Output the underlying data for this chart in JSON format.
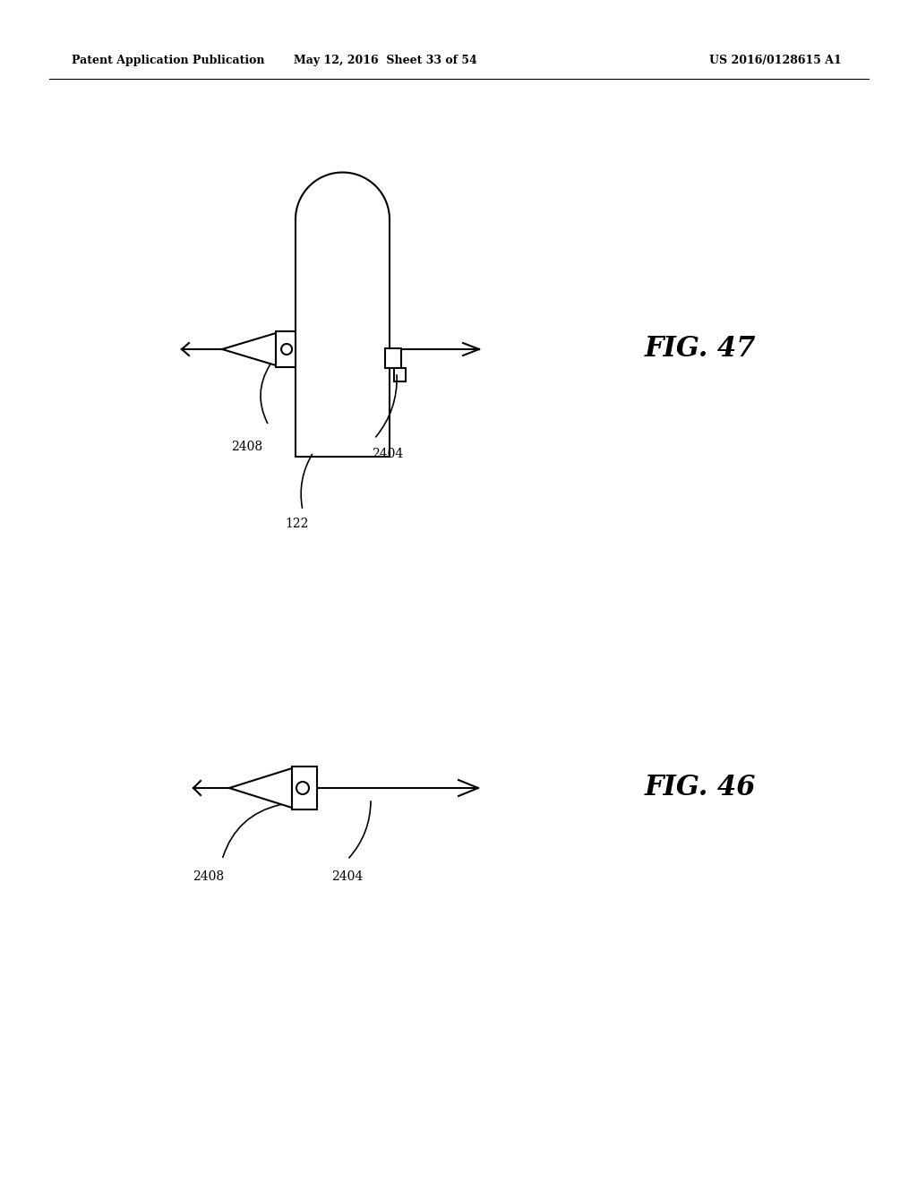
{
  "header_left": "Patent Application Publication",
  "header_mid": "May 12, 2016  Sheet 33 of 54",
  "header_right": "US 2016/0128615 A1",
  "fig47_label": "FIG. 47",
  "fig46_label": "FIG. 46",
  "label_2408_fig47": "2408",
  "label_2404_fig47": "2404",
  "label_122": "122",
  "label_2408_fig46": "2408",
  "label_2404_fig46": "2404",
  "line_color": "#000000",
  "bg_color": "#ffffff"
}
